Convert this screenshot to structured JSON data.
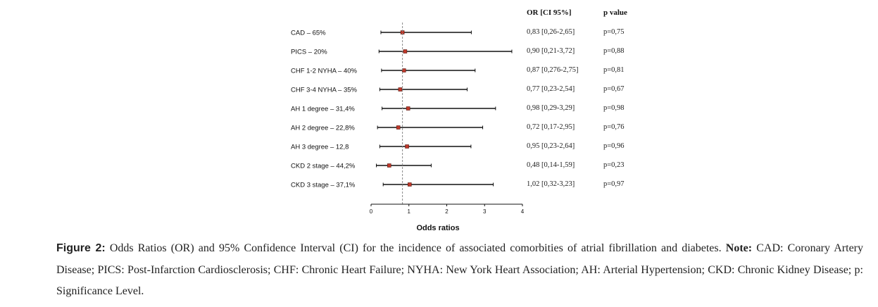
{
  "chart_data": {
    "type": "forest",
    "xlabel": "Odds ratios",
    "xlim": [
      0,
      4
    ],
    "xticks": [
      "0",
      "1",
      "2",
      "3",
      "4"
    ],
    "reference_line": 0.83,
    "headers": {
      "or": "OR [CI 95%]",
      "p": "p value"
    },
    "rows": [
      {
        "label": "CAD – 65%",
        "or": 0.83,
        "lo": 0.26,
        "hi": 2.65,
        "ci_text": "0,83 [0,26-2,65]",
        "p_text": "p=0,75"
      },
      {
        "label": "PICS – 20%",
        "or": 0.9,
        "lo": 0.21,
        "hi": 3.72,
        "ci_text": "0,90 [0,21-3,72]",
        "p_text": "p=0,88"
      },
      {
        "label": "CHF 1-2 NYHA – 40%",
        "or": 0.87,
        "lo": 0.276,
        "hi": 2.75,
        "ci_text": "0,87 [0,276-2,75]",
        "p_text": "p=0,81"
      },
      {
        "label": "CHF 3-4 NYHA – 35%",
        "or": 0.77,
        "lo": 0.23,
        "hi": 2.54,
        "ci_text": "0,77 [0,23-2,54]",
        "p_text": "p=0,67"
      },
      {
        "label": "AH 1 degree – 31,4%",
        "or": 0.98,
        "lo": 0.29,
        "hi": 3.29,
        "ci_text": "0,98 [0,29-3,29]",
        "p_text": "p=0,98"
      },
      {
        "label": "AH 2 degree – 22,8%",
        "or": 0.72,
        "lo": 0.17,
        "hi": 2.95,
        "ci_text": "0,72 [0,17-2,95]",
        "p_text": "p=0,76"
      },
      {
        "label": "AH 3 degree – 12,8",
        "or": 0.95,
        "lo": 0.23,
        "hi": 2.64,
        "ci_text": "0,95 [0,23-2,64]",
        "p_text": "p=0,96"
      },
      {
        "label": "CKD 2 stage – 44,2%",
        "or": 0.48,
        "lo": 0.14,
        "hi": 1.59,
        "ci_text": "0,48 [0,14-1,59]",
        "p_text": "p=0,23"
      },
      {
        "label": "CKD 3 stage – 37,1%",
        "or": 1.02,
        "lo": 0.32,
        "hi": 3.23,
        "ci_text": "1,02 [0,32-3,23]",
        "p_text": "p=0,97"
      }
    ],
    "colors": {
      "marker": "#c0392b",
      "line": "#111111",
      "reference": "#888888"
    }
  },
  "caption": {
    "figure_label": "Figure 2:",
    "main": " Odds Ratios (OR) and 95% Confidence Interval (CI) for the incidence of associated comorbities of atrial fibrillation and diabetes. ",
    "note_label": "Note:",
    "note_text": " CAD: Coronary Artery Disease; PICS: Post-Infarction Cardiosclerosis; CHF: Chronic Heart Failure; NYHA: New York Heart Association; AH: Arterial Hypertension; CKD: Chronic Kidney Disease; p: Significance Level."
  }
}
